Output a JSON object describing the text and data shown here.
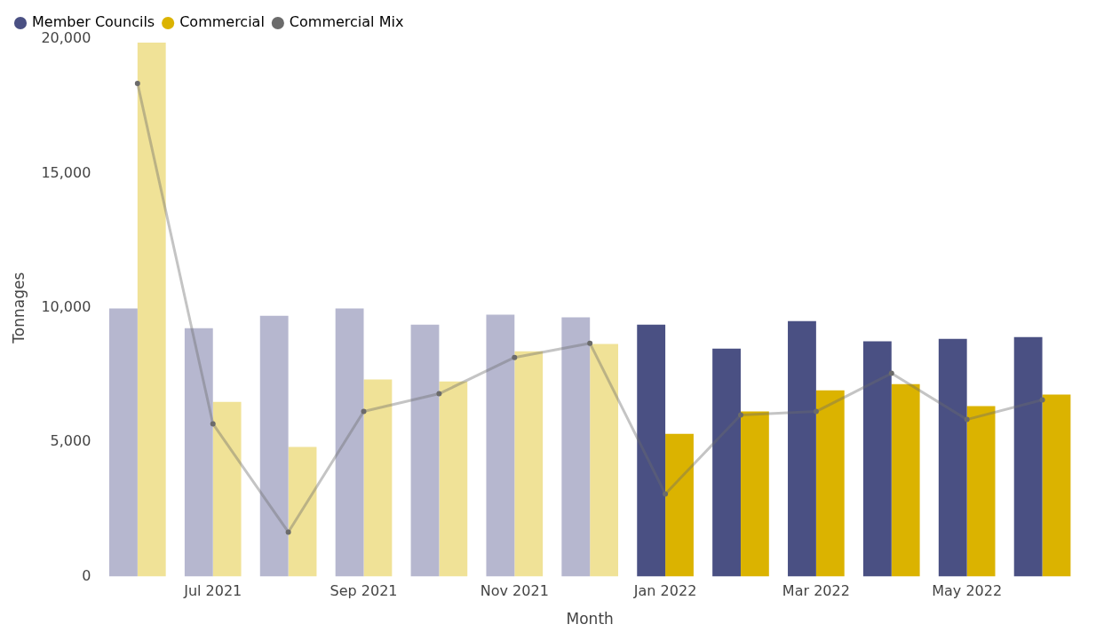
{
  "chart_data": {
    "type": "bar",
    "xlabel": "Month",
    "ylabel": "Tonnages",
    "categories": [
      null,
      "Jul 2021",
      null,
      "Sep 2021",
      null,
      "Nov 2021",
      null,
      "Jan 2022",
      null,
      "Mar 2022",
      null,
      "May 2022",
      null
    ],
    "series": [
      {
        "name": "Member Councils",
        "color": "#4a5083",
        "colors": [
          "#b6b7cf",
          "#b6b7cf",
          "#b6b7cf",
          "#b6b7cf",
          "#b6b7cf",
          "#b6b7cf",
          "#b6b7cf",
          "#4a5083",
          "#4a5083",
          "#4a5083",
          "#4a5083",
          "#4a5083",
          "#4a5083"
        ],
        "values": [
          9970,
          9240,
          9700,
          9970,
          9370,
          9740,
          9640,
          9370,
          8480,
          9500,
          8750,
          8840,
          8910
        ]
      },
      {
        "name": "Commercial",
        "color": "#dbb300",
        "colors": [
          "#f0e297",
          "#f0e297",
          "#f0e297",
          "#f0e297",
          "#f0e297",
          "#f0e297",
          "#f0e297",
          "#dbb300",
          "#dbb300",
          "#dbb300",
          "#dbb300",
          "#dbb300",
          "#dbb300"
        ],
        "values": [
          19870,
          6500,
          4820,
          7330,
          7260,
          8380,
          8650,
          5310,
          6140,
          6930,
          7160,
          6340,
          6770
        ]
      },
      {
        "name": "Commercial Mix",
        "type": "line",
        "color": "#6b6b6b",
        "marker": "circle",
        "values": [
          18350,
          5680,
          1650,
          6140,
          6800,
          8150,
          8680,
          3070,
          6010,
          6140,
          7560,
          5840,
          6570
        ]
      }
    ],
    "ylim": [
      0,
      20000
    ],
    "yticks": [
      0,
      {
        "value": 5000,
        "label": "5,000"
      },
      {
        "value": 10000,
        "label": "10,000"
      },
      {
        "value": 15000,
        "label": "15,000"
      },
      {
        "value": 20000,
        "label": "20,000"
      }
    ],
    "grid": false,
    "legend": "top left"
  }
}
